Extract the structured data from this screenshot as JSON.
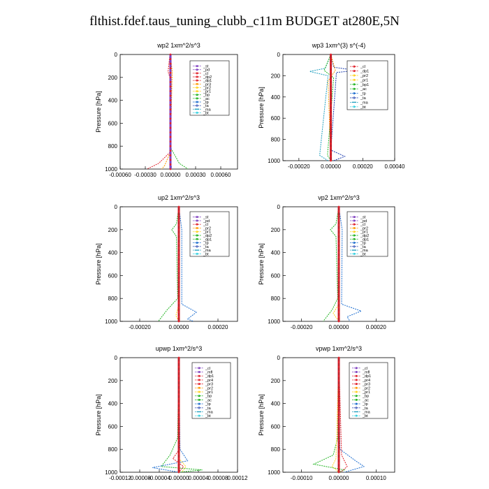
{
  "page": {
    "title": "flthist.fdef.taus_tuning_clubb_c11m  BUDGET at280E,5N"
  },
  "chart_data": [
    {
      "type": "line",
      "title": "wp2  1xm^2/s^3",
      "ylabel": "Pressure [hPa]",
      "xlim": [
        -0.0006,
        0.0008
      ],
      "ylim": [
        1000,
        0
      ],
      "xticks": [
        -0.0006,
        -0.0003,
        0.0,
        0.0003,
        0.0006
      ],
      "xtick_labels": [
        "-0.00060",
        "-0.00030",
        "0.00000",
        "0.00030",
        "0.00060"
      ],
      "yticks": [
        0,
        200,
        400,
        600,
        800,
        1000
      ],
      "series": [
        {
          "name": "_st",
          "color": "#7f3fbf",
          "marker": "circle"
        },
        {
          "name": "_pd",
          "color": "#7f3fbf",
          "marker": "circle"
        },
        {
          "name": "_cl",
          "color": "#e0202a",
          "marker": "circle"
        },
        {
          "name": "_dp2",
          "color": "#e0202a",
          "marker": "circle"
        },
        {
          "name": "_dp1",
          "color": "#e0202a",
          "marker": "circle"
        },
        {
          "name": "_pr3",
          "color": "#ff9a00",
          "marker": "circle"
        },
        {
          "name": "_pr2",
          "color": "#ffd21f",
          "marker": "circle"
        },
        {
          "name": "_pr1",
          "color": "#ffd21f",
          "marker": "circle"
        },
        {
          "name": "_bp",
          "color": "#22b422",
          "marker": "circle"
        },
        {
          "name": "_ac",
          "color": "#22b422",
          "marker": "circle"
        },
        {
          "name": "_tp",
          "color": "#1f6fd0",
          "marker": "circle"
        },
        {
          "name": "_ta",
          "color": "#1f3faf",
          "marker": "plus"
        },
        {
          "name": "_ma",
          "color": "#1f9fbf",
          "marker": "dash"
        },
        {
          "name": "_bt",
          "color": "#35d0e0",
          "marker": "circle"
        }
      ]
    },
    {
      "type": "line",
      "title": "wp3  1xm^(3) s^(-4)",
      "ylabel": "Pressure [hPa]",
      "xlim": [
        -0.0003,
        0.0004
      ],
      "ylim": [
        1000,
        0
      ],
      "xticks": [
        -0.0002,
        0.0,
        0.0002,
        0.0004
      ],
      "xtick_labels": [
        "-0.00020",
        "0.00000",
        "0.00020",
        "0.00040"
      ],
      "yticks": [
        0,
        200,
        400,
        600,
        800,
        1000
      ],
      "series": [
        {
          "name": "_cl",
          "color": "#e0202a",
          "marker": "circle"
        },
        {
          "name": "_dp1",
          "color": "#e0202a",
          "marker": "circle"
        },
        {
          "name": "_pr2",
          "color": "#ffd21f",
          "marker": "circle"
        },
        {
          "name": "_pr1",
          "color": "#ffd21f",
          "marker": "circle"
        },
        {
          "name": "_bp1",
          "color": "#22b422",
          "marker": "circle"
        },
        {
          "name": "_ac",
          "color": "#22b422",
          "marker": "circle"
        },
        {
          "name": "_tp",
          "color": "#1f6fd0",
          "marker": "circle"
        },
        {
          "name": "_ta",
          "color": "#1f3faf",
          "marker": "plus"
        },
        {
          "name": "_ma",
          "color": "#1f9fbf",
          "marker": "dash"
        },
        {
          "name": "_bt",
          "color": "#35d0e0",
          "marker": "circle"
        }
      ]
    },
    {
      "type": "line",
      "title": "up2  1xm^2/s^3",
      "ylabel": "Pressure [hPa]",
      "xlim": [
        -0.0003,
        0.0003
      ],
      "ylim": [
        1000,
        0
      ],
      "xticks": [
        -0.0002,
        0.0,
        0.0002
      ],
      "xtick_labels": [
        "-0.00020",
        "0.00000",
        "0.00020"
      ],
      "yticks": [
        0,
        200,
        400,
        600,
        800,
        1000
      ],
      "series": [
        {
          "name": "_st",
          "color": "#7f3fbf",
          "marker": "circle"
        },
        {
          "name": "_pd",
          "color": "#7f3fbf",
          "marker": "circle"
        },
        {
          "name": "_cl",
          "color": "#e0202a",
          "marker": "circle"
        },
        {
          "name": "_pr2",
          "color": "#ff9a00",
          "marker": "circle"
        },
        {
          "name": "_pr1",
          "color": "#ffd21f",
          "marker": "circle"
        },
        {
          "name": "_dp2",
          "color": "#22b422",
          "marker": "circle"
        },
        {
          "name": "_dp1",
          "color": "#22b422",
          "marker": "circle"
        },
        {
          "name": "_tp",
          "color": "#1f6fd0",
          "marker": "circle"
        },
        {
          "name": "_ta",
          "color": "#1f3faf",
          "marker": "plus"
        },
        {
          "name": "_ma",
          "color": "#1f9fbf",
          "marker": "dash"
        },
        {
          "name": "_bt",
          "color": "#35d0e0",
          "marker": "circle"
        }
      ]
    },
    {
      "type": "line",
      "title": "vp2  1xm^2/s^3",
      "ylabel": "Pressure [hPa]",
      "xlim": [
        -0.0003,
        0.0003
      ],
      "ylim": [
        1000,
        0
      ],
      "xticks": [
        -0.0002,
        0.0,
        0.0002
      ],
      "xtick_labels": [
        "-0.00020",
        "0.00000",
        "0.00020"
      ],
      "yticks": [
        0,
        200,
        400,
        600,
        800,
        1000
      ],
      "series": [
        {
          "name": "_st",
          "color": "#7f3fbf",
          "marker": "circle"
        },
        {
          "name": "_pd",
          "color": "#7f3fbf",
          "marker": "circle"
        },
        {
          "name": "_cl",
          "color": "#e0202a",
          "marker": "circle"
        },
        {
          "name": "_pr2",
          "color": "#ff9a00",
          "marker": "circle"
        },
        {
          "name": "_pr1",
          "color": "#ffd21f",
          "marker": "circle"
        },
        {
          "name": "_dp2",
          "color": "#22b422",
          "marker": "circle"
        },
        {
          "name": "_dp1",
          "color": "#22b422",
          "marker": "circle"
        },
        {
          "name": "_tp",
          "color": "#1f6fd0",
          "marker": "circle"
        },
        {
          "name": "_ta",
          "color": "#1f3faf",
          "marker": "plus"
        },
        {
          "name": "_ma",
          "color": "#1f9fbf",
          "marker": "dash"
        },
        {
          "name": "_bt",
          "color": "#35d0e0",
          "marker": "circle"
        }
      ]
    },
    {
      "type": "line",
      "title": "upwp  1xm^2/s^3",
      "ylabel": "Pressure [hPa]",
      "xlim": [
        -0.00012,
        0.00012
      ],
      "ylim": [
        1000,
        0
      ],
      "xticks": [
        -0.00012,
        -8e-05,
        -4e-05,
        0.0,
        4e-05,
        8e-05,
        0.00012
      ],
      "xtick_labels": [
        "-0.00012",
        "-0.00008",
        "-0.00004",
        "0.00000",
        "0.00004",
        "0.00008",
        "0.00012"
      ],
      "yticks": [
        0,
        200,
        400,
        600,
        800,
        1000
      ],
      "series": [
        {
          "name": "_cl",
          "color": "#7f3fbf",
          "marker": "circle"
        },
        {
          "name": "_mfl",
          "color": "#7f3fbf",
          "marker": "circle"
        },
        {
          "name": "_dp1",
          "color": "#e0202a",
          "marker": "circle"
        },
        {
          "name": "_pr4",
          "color": "#e0202a",
          "marker": "circle"
        },
        {
          "name": "_pr3",
          "color": "#e0202a",
          "marker": "circle"
        },
        {
          "name": "_pr2",
          "color": "#ff9a00",
          "marker": "circle"
        },
        {
          "name": "_pr1",
          "color": "#ffd21f",
          "marker": "circle"
        },
        {
          "name": "_bp",
          "color": "#22b422",
          "marker": "circle"
        },
        {
          "name": "_ac",
          "color": "#22b422",
          "marker": "circle"
        },
        {
          "name": "_tp",
          "color": "#1f6fd0",
          "marker": "circle"
        },
        {
          "name": "_ta",
          "color": "#1f3faf",
          "marker": "plus"
        },
        {
          "name": "_ma",
          "color": "#1f9fbf",
          "marker": "dash"
        },
        {
          "name": "_bt",
          "color": "#35d0e0",
          "marker": "circle"
        }
      ]
    },
    {
      "type": "line",
      "title": "vpwp  1xm^2/s^3",
      "ylabel": "Pressure [hPa]",
      "xlim": [
        -0.00015,
        0.00015
      ],
      "ylim": [
        1000,
        0
      ],
      "xticks": [
        -0.0001,
        0.0,
        0.0001
      ],
      "xtick_labels": [
        "-0.00010",
        "0.00000",
        "0.00010"
      ],
      "yticks": [
        0,
        200,
        400,
        600,
        800,
        1000
      ],
      "series": [
        {
          "name": "_cl",
          "color": "#7f3fbf",
          "marker": "circle"
        },
        {
          "name": "_mfl",
          "color": "#7f3fbf",
          "marker": "circle"
        },
        {
          "name": "_dp1",
          "color": "#e0202a",
          "marker": "circle"
        },
        {
          "name": "_pr4",
          "color": "#e0202a",
          "marker": "circle"
        },
        {
          "name": "_pr3",
          "color": "#e0202a",
          "marker": "circle"
        },
        {
          "name": "_pr2",
          "color": "#ff9a00",
          "marker": "circle"
        },
        {
          "name": "_pr1",
          "color": "#ffd21f",
          "marker": "circle"
        },
        {
          "name": "_bp",
          "color": "#22b422",
          "marker": "circle"
        },
        {
          "name": "_ac",
          "color": "#22b422",
          "marker": "circle"
        },
        {
          "name": "_tp",
          "color": "#1f6fd0",
          "marker": "circle"
        },
        {
          "name": "_ta",
          "color": "#1f3faf",
          "marker": "plus"
        },
        {
          "name": "_ma",
          "color": "#1f9fbf",
          "marker": "dash"
        },
        {
          "name": "_bt",
          "color": "#35d0e0",
          "marker": "circle"
        }
      ]
    }
  ]
}
